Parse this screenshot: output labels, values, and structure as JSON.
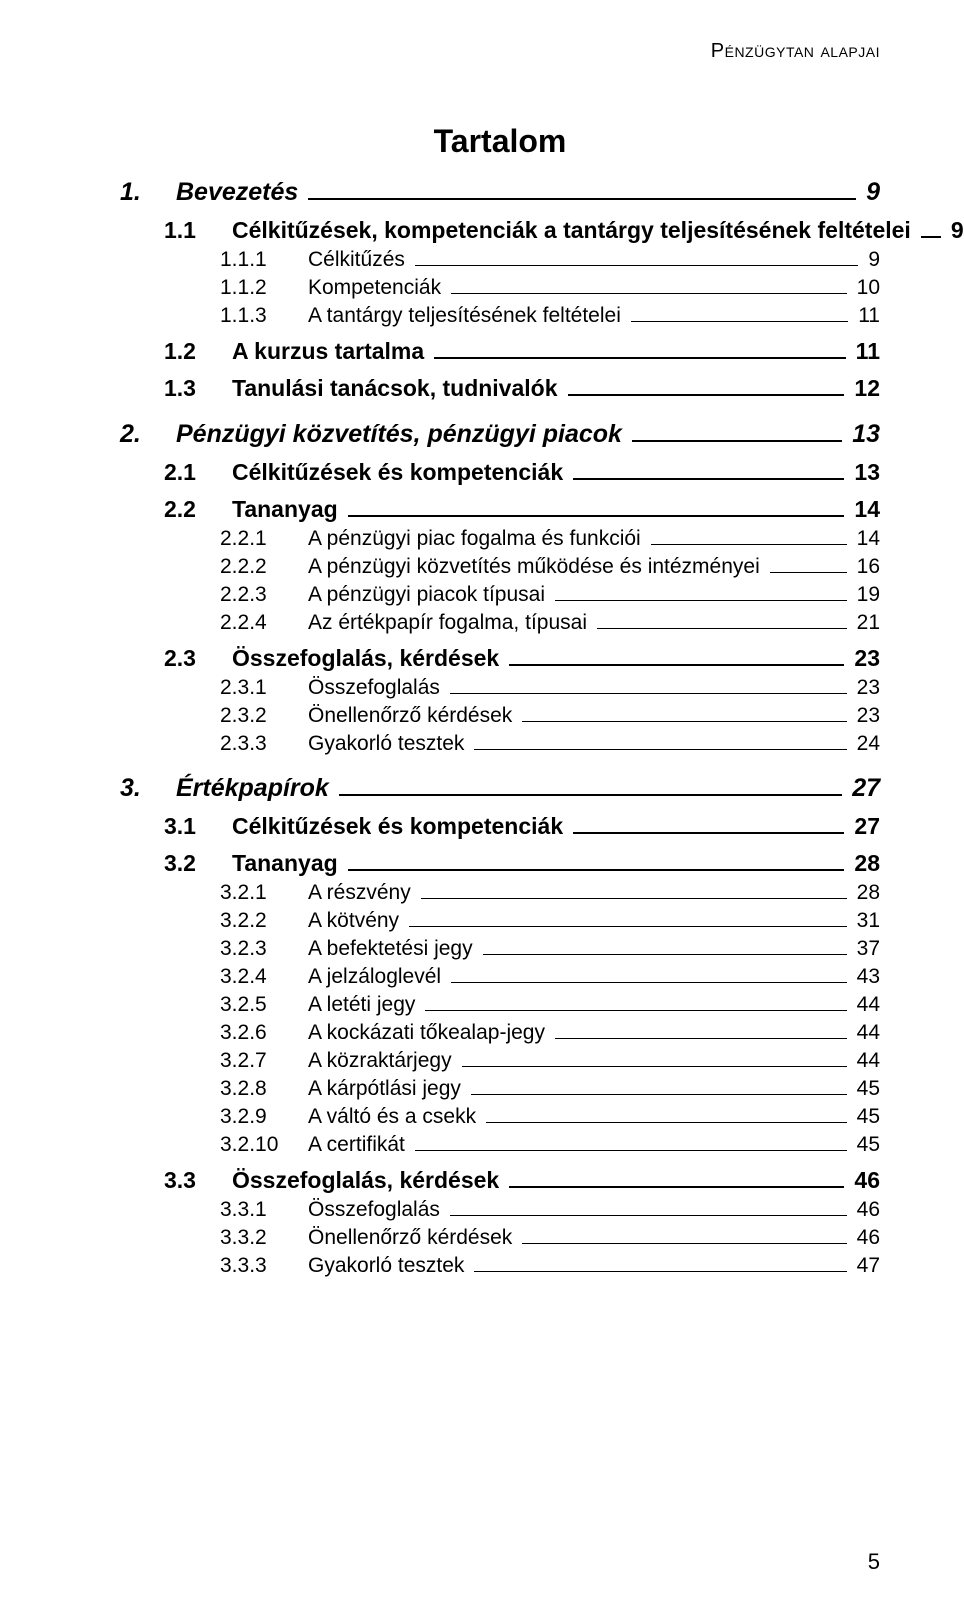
{
  "running_header": "Pénzügytan alapjai",
  "title": "Tartalom",
  "page_number": "5",
  "colors": {
    "background": "#ffffff",
    "text": "#000000",
    "leader": "#000000"
  },
  "typography": {
    "family": "Arial",
    "title_size_pt": 24,
    "lvl1_size_pt": 19,
    "lvl2_size_pt": 17,
    "lvl3_size_pt": 16,
    "lvl1_style": "bold italic",
    "lvl2_style": "bold",
    "lvl3_style": "normal"
  },
  "toc": [
    {
      "level": 1,
      "num": "1.",
      "label": "Bevezetés",
      "page": "9"
    },
    {
      "level": 2,
      "num": "1.1",
      "label": "Célkitűzések, kompetenciák a tantárgy teljesítésének feltételei",
      "page": "9"
    },
    {
      "level": 3,
      "num": "1.1.1",
      "label": "Célkitűzés",
      "page": "9"
    },
    {
      "level": 3,
      "num": "1.1.2",
      "label": "Kompetenciák",
      "page": "10"
    },
    {
      "level": 3,
      "num": "1.1.3",
      "label": "A tantárgy teljesítésének feltételei",
      "page": "11"
    },
    {
      "level": 2,
      "num": "1.2",
      "label": "A kurzus tartalma",
      "page": "11"
    },
    {
      "level": 2,
      "num": "1.3",
      "label": "Tanulási tanácsok, tudnivalók",
      "page": "12"
    },
    {
      "level": 1,
      "num": "2.",
      "label": "Pénzügyi közvetítés, pénzügyi piacok",
      "page": "13"
    },
    {
      "level": 2,
      "num": "2.1",
      "label": "Célkitűzések és kompetenciák",
      "page": "13"
    },
    {
      "level": 2,
      "num": "2.2",
      "label": "Tananyag",
      "page": "14"
    },
    {
      "level": 3,
      "num": "2.2.1",
      "label": "A pénzügyi piac fogalma és funkciói",
      "page": "14"
    },
    {
      "level": 3,
      "num": "2.2.2",
      "label": "A pénzügyi közvetítés működése és intézményei",
      "page": "16"
    },
    {
      "level": 3,
      "num": "2.2.3",
      "label": "A pénzügyi piacok típusai",
      "page": "19"
    },
    {
      "level": 3,
      "num": "2.2.4",
      "label": "Az értékpapír fogalma, típusai",
      "page": "21"
    },
    {
      "level": 2,
      "num": "2.3",
      "label": "Összefoglalás, kérdések",
      "page": "23"
    },
    {
      "level": 3,
      "num": "2.3.1",
      "label": "Összefoglalás",
      "page": "23"
    },
    {
      "level": 3,
      "num": "2.3.2",
      "label": "Önellenőrző kérdések",
      "page": "23"
    },
    {
      "level": 3,
      "num": "2.3.3",
      "label": "Gyakorló tesztek",
      "page": "24"
    },
    {
      "level": 1,
      "num": "3.",
      "label": "Értékpapírok",
      "page": "27"
    },
    {
      "level": 2,
      "num": "3.1",
      "label": "Célkitűzések és kompetenciák",
      "page": "27"
    },
    {
      "level": 2,
      "num": "3.2",
      "label": "Tananyag",
      "page": "28"
    },
    {
      "level": 3,
      "num": "3.2.1",
      "label": "A részvény",
      "page": "28"
    },
    {
      "level": 3,
      "num": "3.2.2",
      "label": "A kötvény",
      "page": "31"
    },
    {
      "level": 3,
      "num": "3.2.3",
      "label": "A befektetési jegy",
      "page": "37"
    },
    {
      "level": 3,
      "num": "3.2.4",
      "label": "A jelzáloglevél",
      "page": "43"
    },
    {
      "level": 3,
      "num": "3.2.5",
      "label": "A letéti jegy",
      "page": "44"
    },
    {
      "level": 3,
      "num": "3.2.6",
      "label": "A kockázati tőkealap-jegy",
      "page": "44"
    },
    {
      "level": 3,
      "num": "3.2.7",
      "label": "A közraktárjegy",
      "page": "44"
    },
    {
      "level": 3,
      "num": "3.2.8",
      "label": "A kárpótlási jegy",
      "page": "45"
    },
    {
      "level": 3,
      "num": "3.2.9",
      "label": "A váltó és a csekk",
      "page": "45"
    },
    {
      "level": 3,
      "num": "3.2.10",
      "label": "A certifikát",
      "page": "45"
    },
    {
      "level": 2,
      "num": "3.3",
      "label": "Összefoglalás, kérdések",
      "page": "46"
    },
    {
      "level": 3,
      "num": "3.3.1",
      "label": "Összefoglalás",
      "page": "46"
    },
    {
      "level": 3,
      "num": "3.3.2",
      "label": "Önellenőrző kérdések",
      "page": "46"
    },
    {
      "level": 3,
      "num": "3.3.3",
      "label": "Gyakorló tesztek",
      "page": "47"
    }
  ]
}
